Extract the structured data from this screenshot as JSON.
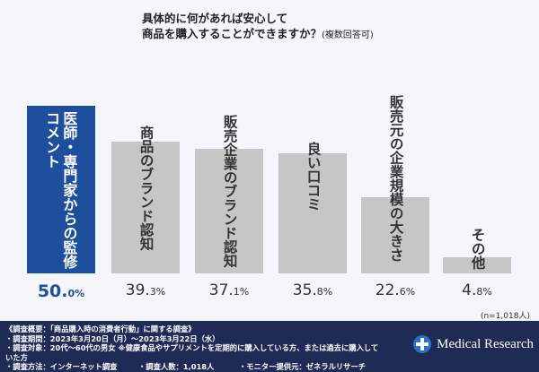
{
  "chart_data": {
    "type": "bar",
    "title": "具体的に何があれば安心して",
    "title_line2": "商品を購入することができますか？",
    "subtitle": "(複数回答可)",
    "categories": [
      "医師・専門家からの監修コメント",
      "商品のブランド認知",
      "販売企業のブランド認知",
      "良い口コミ",
      "販売元の企業規模の大きさ",
      "その他"
    ],
    "values": [
      50.0,
      39.3,
      37.1,
      35.8,
      22.6,
      4.8
    ],
    "value_labels": [
      [
        "50.",
        "0%"
      ],
      [
        "39.",
        "3%"
      ],
      [
        "37.",
        "1%"
      ],
      [
        "35.",
        "8%"
      ],
      [
        "22.",
        "6%"
      ],
      [
        "4.",
        "8%"
      ]
    ],
    "unit": "%",
    "ylim": [
      0,
      50
    ],
    "grid": false,
    "colors": {
      "highlight": "#1e4f9c",
      "default": "#c6c6c6"
    },
    "note": "(n=1,018人)"
  },
  "footer": {
    "heading": "《調査概要：「商品購入時の消費者行動」に関する調査》",
    "period": "・調査期間：2023年3月20日（月）～2023年3月22日（水）",
    "target": "・調査対象：20代～60代の男女 ※健康食品やサプリメントを定期的に購入している方、または過去に購入していた方",
    "method": "・調査方法：インターネット調査",
    "count": "・調査人数：1,018人",
    "provider": "・モニター提供元：ゼネラルリサーチ",
    "brand": "Medical Research",
    "brand_icon": "medical-cross-icon"
  }
}
